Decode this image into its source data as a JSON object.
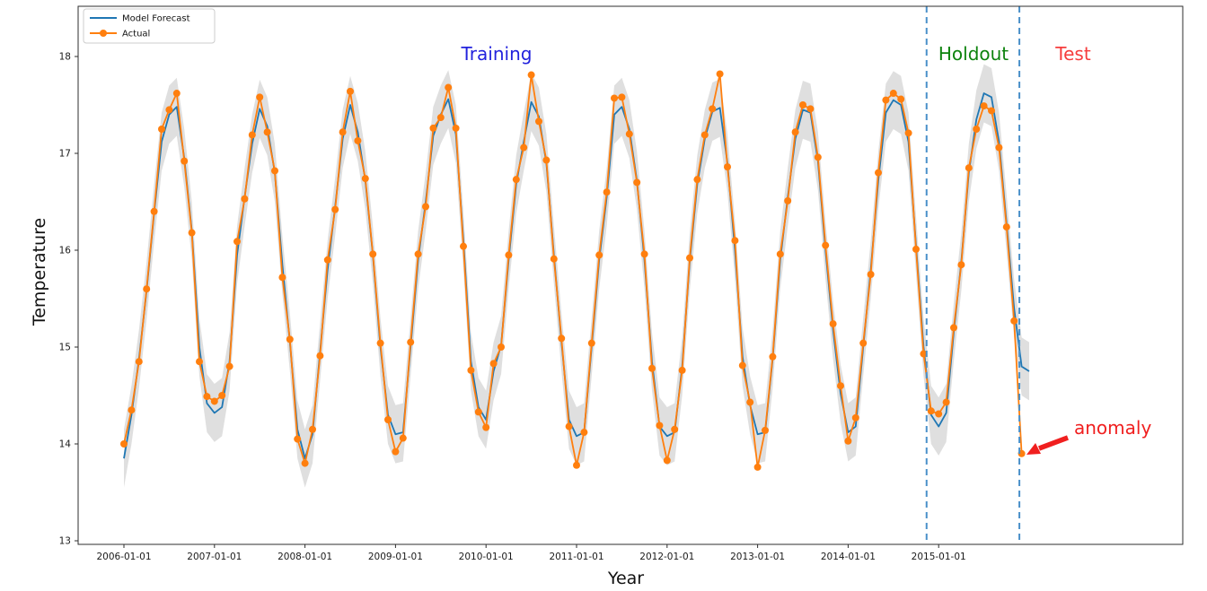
{
  "chart_data": {
    "type": "line",
    "title": "",
    "xlabel": "Year",
    "ylabel": "Temperature",
    "ylim": [
      13,
      18
    ],
    "yticks": [
      "13",
      "14",
      "15",
      "16",
      "17",
      "18"
    ],
    "xticks": [
      "2006-01-01",
      "2007-01-01",
      "2008-01-01",
      "2009-01-01",
      "2010-01-01",
      "2011-01-01",
      "2012-01-01",
      "2013-01-01",
      "2014-01-01",
      "2015-01-01"
    ],
    "x_unit": "monthly from 2006-01",
    "grid": false,
    "legend_position": "upper-left",
    "series": [
      {
        "name": "Model Forecast",
        "color": "#1f77b4",
        "marker": "none",
        "start": "2006-01",
        "values": [
          13.85,
          14.3,
          14.88,
          15.58,
          16.38,
          17.12,
          17.4,
          17.48,
          16.95,
          16.2,
          15.0,
          14.42,
          14.32,
          14.38,
          14.85,
          15.95,
          16.55,
          17.1,
          17.46,
          17.28,
          16.8,
          15.85,
          15.05,
          14.15,
          13.85,
          14.1,
          14.95,
          15.8,
          16.45,
          17.15,
          17.5,
          17.22,
          16.72,
          15.95,
          15.0,
          14.3,
          14.1,
          14.12,
          15.0,
          15.9,
          16.5,
          17.18,
          17.4,
          17.56,
          17.2,
          16.1,
          14.85,
          14.38,
          14.25,
          14.75,
          15.02,
          15.9,
          16.68,
          17.12,
          17.53,
          17.38,
          16.9,
          15.95,
          15.05,
          14.25,
          14.08,
          14.12,
          15.0,
          15.9,
          16.55,
          17.4,
          17.48,
          17.25,
          16.72,
          15.9,
          14.85,
          14.18,
          14.08,
          14.12,
          14.8,
          15.88,
          16.68,
          17.15,
          17.43,
          17.47,
          16.9,
          16.0,
          14.9,
          14.4,
          14.1,
          14.12,
          14.88,
          15.9,
          16.55,
          17.15,
          17.45,
          17.42,
          16.92,
          16.0,
          15.18,
          14.52,
          14.12,
          14.18,
          15.0,
          15.8,
          16.72,
          17.42,
          17.55,
          17.5,
          17.12,
          16.05,
          15.0,
          14.3,
          14.18,
          14.32,
          15.15,
          15.88,
          16.8,
          17.35,
          17.62,
          17.58,
          17.12,
          16.28,
          15.4,
          14.8,
          14.75
        ]
      },
      {
        "name": "Actual",
        "color": "#ff7f0e",
        "marker": "circle",
        "start": "2006-01",
        "values": [
          14.0,
          14.35,
          14.85,
          15.6,
          16.4,
          17.25,
          17.45,
          17.62,
          16.92,
          16.18,
          14.85,
          14.49,
          14.44,
          14.5,
          14.8,
          16.09,
          16.53,
          17.19,
          17.58,
          17.22,
          16.82,
          15.72,
          15.08,
          14.05,
          13.8,
          14.15,
          14.91,
          15.9,
          16.42,
          17.22,
          17.64,
          17.13,
          16.74,
          15.96,
          15.04,
          14.25,
          13.92,
          14.06,
          15.05,
          15.96,
          16.45,
          17.26,
          17.37,
          17.68,
          17.26,
          16.04,
          14.76,
          14.33,
          14.17,
          14.83,
          15.0,
          15.95,
          16.73,
          17.06,
          17.81,
          17.33,
          16.93,
          15.91,
          15.09,
          14.18,
          13.78,
          14.12,
          15.04,
          15.95,
          16.6,
          17.57,
          17.58,
          17.2,
          16.7,
          15.96,
          14.78,
          14.19,
          13.83,
          14.15,
          14.76,
          15.92,
          16.73,
          17.19,
          17.46,
          17.82,
          16.86,
          16.1,
          14.81,
          14.43,
          13.76,
          14.14,
          14.9,
          15.96,
          16.51,
          17.22,
          17.5,
          17.46,
          16.96,
          16.05,
          15.24,
          14.6,
          14.03,
          14.27,
          15.04,
          15.75,
          16.8,
          17.55,
          17.62,
          17.56,
          17.21,
          16.01,
          14.93,
          14.34,
          14.31,
          14.43,
          15.2,
          15.85,
          16.85,
          17.25,
          17.49,
          17.44,
          17.06,
          16.24,
          15.27,
          13.9
        ]
      }
    ],
    "confidence_band": {
      "around": "Model Forecast",
      "halfwidth": 0.3,
      "color": "#b9b9b9",
      "opacity": 0.45
    },
    "vlines": {
      "style": "dashed",
      "color": "#4a90c9",
      "month_indices": [
        106.4,
        118.7
      ],
      "dates": [
        "2014-11-15",
        "2015-11-20"
      ]
    },
    "regions": [
      {
        "label": "Training",
        "color": "#2222dd"
      },
      {
        "label": "Holdout",
        "color": "#0d830d"
      },
      {
        "label": "Test",
        "color": "#f63c3c"
      }
    ],
    "annotation": {
      "label": "anomaly",
      "color": "#f01f1f",
      "points_to": {
        "date": "2015-12",
        "month_index": 119,
        "value": 13.9
      }
    }
  }
}
